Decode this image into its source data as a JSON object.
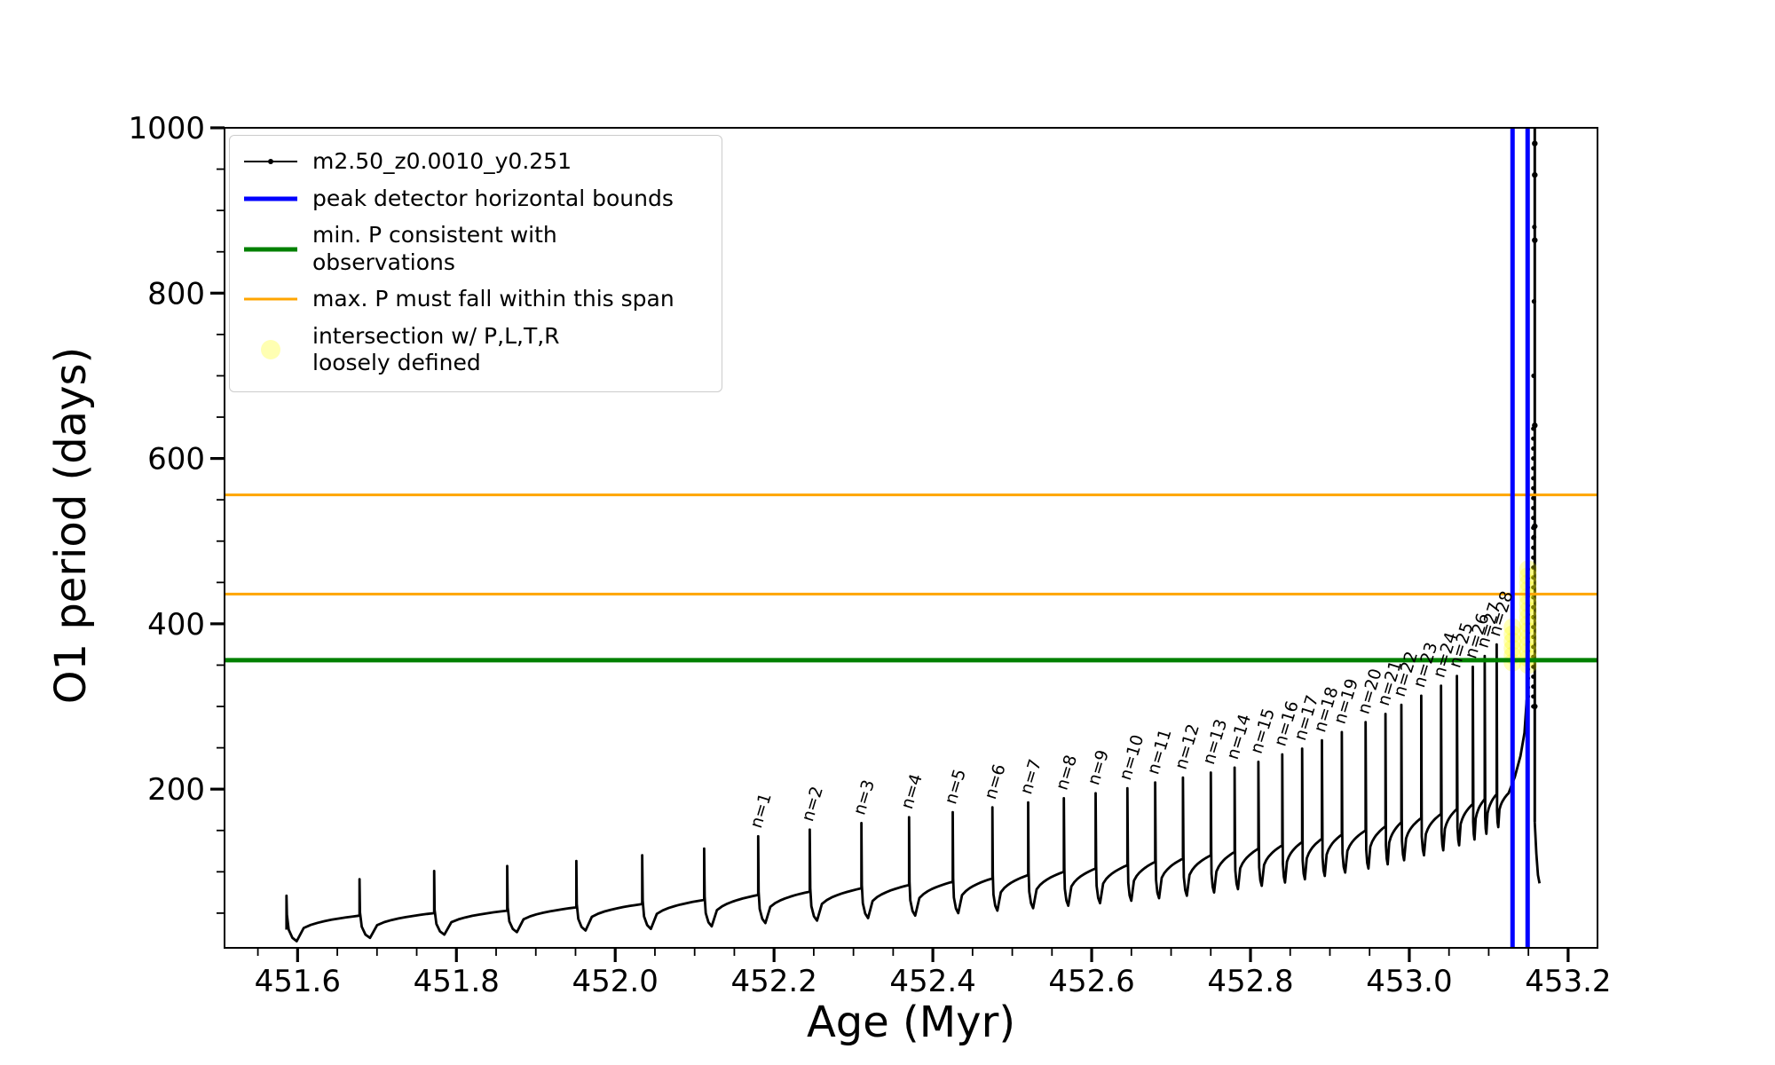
{
  "chart_data": {
    "type": "line",
    "title": "",
    "xlabel": "Age (Myr)",
    "ylabel": "O1 period (days)",
    "xlim": [
      451.508,
      453.237
    ],
    "ylim": [
      8,
      1000
    ],
    "x_ticks": [
      451.6,
      451.8,
      452.0,
      452.2,
      452.4,
      452.6,
      452.8,
      453.0,
      453.2
    ],
    "x_tick_labels": [
      "451.6",
      "451.8",
      "452.0",
      "452.2",
      "452.4",
      "452.6",
      "452.8",
      "453.0",
      "453.2"
    ],
    "x_minor_step": 0.05,
    "y_ticks": [
      200,
      400,
      600,
      800,
      1000
    ],
    "y_tick_labels": [
      "200",
      "400",
      "600",
      "800",
      "1000"
    ],
    "y_minor_step": 50,
    "grid": false,
    "legend_position": "upper-left",
    "series_name": "m2.50_z0.0010_y0.251",
    "series_color": "#000000",
    "teeth_format": [
      "x_myr",
      "spike_peak_days",
      "plateau_base_days",
      "notch_min_days",
      "label"
    ],
    "teeth": [
      [
        451.586,
        71,
        44,
        16,
        ""
      ],
      [
        451.678,
        91,
        47,
        20,
        ""
      ],
      [
        451.772,
        101,
        50,
        24,
        ""
      ],
      [
        451.864,
        107,
        53,
        27,
        ""
      ],
      [
        451.951,
        113,
        57,
        29,
        ""
      ],
      [
        452.034,
        120,
        61,
        31,
        ""
      ],
      [
        452.112,
        128,
        66,
        34,
        ""
      ],
      [
        452.18,
        143,
        72,
        38,
        "n=1"
      ],
      [
        452.245,
        151,
        76,
        41,
        "n=2"
      ],
      [
        452.31,
        159,
        80,
        44,
        "n=3"
      ],
      [
        452.37,
        166,
        84,
        47,
        "n=4"
      ],
      [
        452.425,
        172,
        88,
        50,
        "n=5"
      ],
      [
        452.475,
        178,
        92,
        53,
        "n=6"
      ],
      [
        452.52,
        184,
        96,
        56,
        "n=7"
      ],
      [
        452.565,
        189,
        100,
        59,
        "n=8"
      ],
      [
        452.605,
        195,
        104,
        62,
        "n=9"
      ],
      [
        452.645,
        201,
        108,
        65,
        "n=10"
      ],
      [
        452.68,
        208,
        112,
        68,
        "n=11"
      ],
      [
        452.715,
        214,
        116,
        71,
        "n=12"
      ],
      [
        452.75,
        220,
        120,
        75,
        "n=13"
      ],
      [
        452.78,
        226,
        124,
        79,
        "n=14"
      ],
      [
        452.81,
        233,
        128,
        83,
        "n=15"
      ],
      [
        452.84,
        242,
        132,
        87,
        "n=16"
      ],
      [
        452.865,
        249,
        136,
        91,
        "n=17"
      ],
      [
        452.89,
        259,
        140,
        95,
        "n=18"
      ],
      [
        452.915,
        269,
        145,
        99,
        "n=19"
      ],
      [
        452.945,
        281,
        150,
        104,
        "n=20"
      ],
      [
        452.97,
        291,
        155,
        109,
        "n=21"
      ],
      [
        452.99,
        302,
        160,
        114,
        "n=22"
      ],
      [
        453.015,
        313,
        165,
        120,
        "n=23"
      ],
      [
        453.04,
        325,
        170,
        126,
        "n=24"
      ],
      [
        453.06,
        337,
        176,
        132,
        "n=25"
      ],
      [
        453.08,
        348,
        182,
        139,
        "n=26"
      ],
      [
        453.095,
        361,
        188,
        146,
        "n=27"
      ],
      [
        453.11,
        375,
        194,
        154,
        "n=28"
      ]
    ],
    "end_track": {
      "rise": [
        [
          453.125,
          195
        ],
        [
          453.133,
          215
        ],
        [
          453.14,
          240
        ],
        [
          453.145,
          268
        ],
        [
          453.1478,
          308
        ]
      ],
      "dotted_columns": [
        {
          "x": 453.1495,
          "y_min": 312,
          "y_max": 470,
          "step": 11
        },
        {
          "x": 453.156,
          "y_min": 300,
          "y_max": 645,
          "step": 12
        }
      ],
      "sparse_dots": [
        [
          453.1565,
          700
        ],
        [
          453.157,
          790
        ],
        [
          453.1575,
          880
        ],
        [
          453.157,
          505
        ]
      ],
      "vertical": {
        "x": 453.158,
        "y_min": 160,
        "y_max": 1000
      },
      "vertical_dots": [
        [
          453.158,
          981
        ],
        [
          453.158,
          943
        ],
        [
          453.158,
          864
        ],
        [
          453.158,
          640
        ],
        [
          453.158,
          518
        ],
        [
          453.158,
          300
        ]
      ],
      "plunge": [
        [
          453.158,
          160
        ],
        [
          453.16,
          122
        ],
        [
          453.162,
          96
        ],
        [
          453.164,
          86
        ]
      ]
    },
    "hlines": [
      {
        "y": 556,
        "color": "#FFA500",
        "lw": 3,
        "role": "max-P-span-upper"
      },
      {
        "y": 436,
        "color": "#FFA500",
        "lw": 3,
        "role": "max-P-span-lower"
      },
      {
        "y": 356,
        "color": "#008000",
        "lw": 5,
        "role": "min-P-consistent"
      }
    ],
    "vlines": [
      {
        "x": 453.13,
        "color": "#0000FF",
        "lw": 5,
        "role": "peak-detector-left"
      },
      {
        "x": 453.149,
        "color": "#0000FF",
        "lw": 5,
        "role": "peak-detector-right"
      }
    ],
    "intersection_clusters": [
      {
        "x": 453.13,
        "y_min": 353,
        "y_max": 396,
        "count": 6,
        "r": 10
      },
      {
        "x": 453.1495,
        "y_min": 350,
        "y_max": 466,
        "count": 15,
        "r": 10
      }
    ],
    "scatter_color": "#FFFF00",
    "scatter_opacity": 0.28
  },
  "legend": {
    "entries": [
      {
        "label": "m2.50_z0.0010_y0.251",
        "handle": "line-dot",
        "color": "#000000",
        "lw": 2
      },
      {
        "label": "peak detector horizontal bounds",
        "handle": "line",
        "color": "#0000FF",
        "lw": 5
      },
      {
        "label": "min. P consistent with observations",
        "handle": "line",
        "color": "#008000",
        "lw": 5
      },
      {
        "label": "max. P must fall within this span",
        "handle": "line",
        "color": "#FFA500",
        "lw": 3
      },
      {
        "label": "intersection w/ P,L,T,R\nloosely defined",
        "handle": "dot",
        "color": "#FFFF00",
        "dot_opacity": 0.3,
        "lw": 0
      }
    ]
  }
}
